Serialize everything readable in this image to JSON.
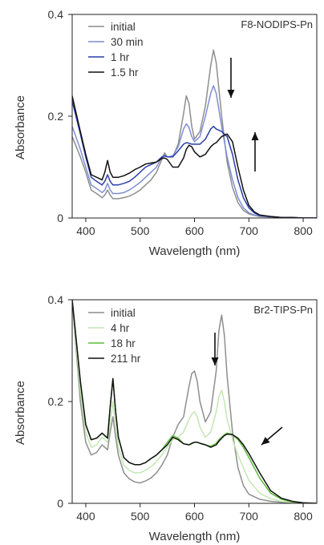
{
  "chart_data": [
    {
      "type": "line",
      "title": "F8-NODIPS-Pn",
      "xlabel": "Wavelength (nm)",
      "ylabel": "Absorbance",
      "xlim": [
        375,
        825
      ],
      "ylim": [
        0,
        0.4
      ],
      "xticks": [
        "400",
        "500",
        "600",
        "700",
        "800"
      ],
      "yticks": [
        "0",
        "0.2",
        "0.4"
      ],
      "grid": false,
      "legend": "top-left",
      "annotations": [
        "down arrow at 620 nm",
        "up arrow at 695 nm"
      ],
      "series": [
        {
          "name": "initial",
          "color": "#8e8e8e",
          "x": [
            375,
            390,
            400,
            410,
            420,
            430,
            435,
            440,
            445,
            450,
            460,
            470,
            480,
            490,
            500,
            510,
            520,
            530,
            540,
            545,
            550,
            560,
            570,
            580,
            585,
            590,
            595,
            600,
            610,
            620,
            630,
            635,
            640,
            650,
            660,
            670,
            680,
            690,
            700,
            710,
            720,
            740,
            760,
            780,
            800,
            825
          ],
          "y": [
            0.16,
            0.12,
            0.09,
            0.055,
            0.048,
            0.04,
            0.045,
            0.055,
            0.045,
            0.038,
            0.038,
            0.04,
            0.043,
            0.048,
            0.055,
            0.065,
            0.075,
            0.09,
            0.115,
            0.128,
            0.12,
            0.12,
            0.145,
            0.205,
            0.24,
            0.225,
            0.18,
            0.155,
            0.17,
            0.22,
            0.3,
            0.33,
            0.305,
            0.2,
            0.11,
            0.06,
            0.03,
            0.015,
            0.008,
            0.005,
            0.003,
            0.002,
            0.001,
            0.001,
            0.0,
            0.0
          ]
        },
        {
          "name": "30 min",
          "color": "#7f8ed6",
          "x": [
            375,
            390,
            400,
            410,
            420,
            430,
            435,
            440,
            445,
            450,
            460,
            470,
            480,
            490,
            500,
            510,
            520,
            530,
            540,
            545,
            550,
            560,
            570,
            580,
            585,
            590,
            595,
            600,
            610,
            620,
            630,
            635,
            640,
            650,
            660,
            670,
            680,
            690,
            700,
            710,
            720,
            740,
            760,
            780,
            800,
            825
          ],
          "y": [
            0.18,
            0.135,
            0.1,
            0.065,
            0.058,
            0.05,
            0.055,
            0.068,
            0.055,
            0.048,
            0.048,
            0.05,
            0.055,
            0.062,
            0.07,
            0.08,
            0.09,
            0.1,
            0.12,
            0.124,
            0.12,
            0.122,
            0.14,
            0.175,
            0.185,
            0.178,
            0.16,
            0.15,
            0.16,
            0.2,
            0.245,
            0.26,
            0.245,
            0.18,
            0.12,
            0.075,
            0.04,
            0.02,
            0.01,
            0.006,
            0.004,
            0.002,
            0.001,
            0.001,
            0.0,
            0.0
          ]
        },
        {
          "name": "1 hr",
          "color": "#2a3ea8",
          "x": [
            375,
            390,
            400,
            410,
            420,
            430,
            435,
            440,
            445,
            450,
            460,
            470,
            480,
            490,
            500,
            510,
            520,
            530,
            540,
            545,
            550,
            560,
            570,
            580,
            585,
            590,
            595,
            600,
            610,
            620,
            630,
            635,
            640,
            650,
            660,
            670,
            680,
            690,
            700,
            710,
            720,
            740,
            760,
            780,
            800,
            825
          ],
          "y": [
            0.23,
            0.165,
            0.12,
            0.08,
            0.072,
            0.065,
            0.072,
            0.085,
            0.072,
            0.065,
            0.065,
            0.068,
            0.072,
            0.08,
            0.09,
            0.1,
            0.105,
            0.11,
            0.12,
            0.122,
            0.12,
            0.12,
            0.132,
            0.145,
            0.148,
            0.147,
            0.145,
            0.145,
            0.145,
            0.155,
            0.175,
            0.18,
            0.175,
            0.17,
            0.16,
            0.125,
            0.075,
            0.04,
            0.02,
            0.01,
            0.005,
            0.003,
            0.001,
            0.001,
            0.0,
            0.0
          ]
        },
        {
          "name": "1.5 hr",
          "color": "#111111",
          "x": [
            375,
            390,
            400,
            410,
            420,
            430,
            435,
            440,
            445,
            450,
            460,
            470,
            480,
            490,
            500,
            510,
            520,
            530,
            540,
            545,
            550,
            560,
            570,
            580,
            585,
            590,
            595,
            600,
            610,
            620,
            630,
            635,
            640,
            650,
            660,
            670,
            680,
            690,
            700,
            710,
            720,
            740,
            760,
            780,
            800,
            825
          ],
          "y": [
            0.24,
            0.17,
            0.125,
            0.085,
            0.08,
            0.075,
            0.09,
            0.113,
            0.09,
            0.08,
            0.08,
            0.083,
            0.088,
            0.095,
            0.1,
            0.106,
            0.108,
            0.11,
            0.117,
            0.118,
            0.115,
            0.1,
            0.1,
            0.118,
            0.135,
            0.143,
            0.14,
            0.13,
            0.12,
            0.125,
            0.14,
            0.145,
            0.148,
            0.16,
            0.165,
            0.15,
            0.1,
            0.055,
            0.025,
            0.012,
            0.006,
            0.003,
            0.001,
            0.001,
            0.0,
            0.0
          ]
        }
      ]
    },
    {
      "type": "line",
      "title": "Br2-TIPS-Pn",
      "xlabel": "Wavelength (nm)",
      "ylabel": "Absorbance",
      "xlim": [
        375,
        825
      ],
      "ylim": [
        0,
        0.4
      ],
      "xticks": [
        "400",
        "500",
        "600",
        "700",
        "800"
      ],
      "yticks": [
        "0",
        "0.2",
        "0.4"
      ],
      "grid": false,
      "legend": "top-left",
      "annotations": [
        "down arrow at 630 nm",
        "diagonal arrow pointing to 710 nm shoulder"
      ],
      "series": [
        {
          "name": "initial",
          "color": "#8e8e8e",
          "x": [
            375,
            390,
            400,
            410,
            420,
            430,
            440,
            445,
            450,
            455,
            460,
            470,
            480,
            490,
            500,
            510,
            520,
            530,
            540,
            550,
            560,
            570,
            580,
            590,
            595,
            600,
            605,
            610,
            620,
            630,
            640,
            645,
            650,
            655,
            660,
            670,
            680,
            690,
            700,
            720,
            740,
            760,
            780,
            800,
            825
          ],
          "y": [
            0.4,
            0.2,
            0.12,
            0.095,
            0.1,
            0.115,
            0.105,
            0.14,
            0.17,
            0.13,
            0.095,
            0.06,
            0.048,
            0.042,
            0.04,
            0.044,
            0.05,
            0.06,
            0.075,
            0.095,
            0.13,
            0.155,
            0.17,
            0.23,
            0.255,
            0.26,
            0.24,
            0.2,
            0.16,
            0.18,
            0.26,
            0.34,
            0.37,
            0.33,
            0.25,
            0.14,
            0.07,
            0.035,
            0.018,
            0.008,
            0.004,
            0.002,
            0.001,
            0.0,
            0.0
          ]
        },
        {
          "name": "4 hr",
          "color": "#c4e6b2",
          "x": [
            375,
            390,
            400,
            410,
            420,
            430,
            440,
            445,
            450,
            455,
            460,
            470,
            480,
            490,
            500,
            510,
            520,
            530,
            540,
            550,
            560,
            570,
            580,
            590,
            595,
            600,
            605,
            610,
            620,
            630,
            640,
            645,
            650,
            655,
            660,
            670,
            680,
            690,
            700,
            720,
            740,
            760,
            780,
            800,
            825
          ],
          "y": [
            0.4,
            0.22,
            0.14,
            0.11,
            0.115,
            0.13,
            0.12,
            0.16,
            0.2,
            0.15,
            0.11,
            0.075,
            0.065,
            0.06,
            0.06,
            0.065,
            0.072,
            0.082,
            0.095,
            0.11,
            0.125,
            0.13,
            0.14,
            0.165,
            0.175,
            0.18,
            0.17,
            0.15,
            0.13,
            0.14,
            0.18,
            0.21,
            0.222,
            0.2,
            0.165,
            0.125,
            0.095,
            0.07,
            0.045,
            0.02,
            0.009,
            0.004,
            0.002,
            0.001,
            0.0
          ]
        },
        {
          "name": "18 hr",
          "color": "#5cba3a",
          "x": [
            375,
            390,
            400,
            410,
            420,
            430,
            440,
            445,
            450,
            455,
            460,
            470,
            480,
            490,
            500,
            510,
            520,
            530,
            540,
            550,
            560,
            570,
            580,
            590,
            595,
            600,
            605,
            610,
            620,
            630,
            640,
            645,
            650,
            655,
            660,
            670,
            680,
            690,
            700,
            720,
            740,
            760,
            780,
            800,
            825
          ],
          "y": [
            0.4,
            0.24,
            0.155,
            0.125,
            0.128,
            0.138,
            0.128,
            0.19,
            0.245,
            0.18,
            0.13,
            0.09,
            0.08,
            0.076,
            0.076,
            0.08,
            0.088,
            0.095,
            0.105,
            0.12,
            0.133,
            0.128,
            0.117,
            0.115,
            0.117,
            0.12,
            0.12,
            0.118,
            0.115,
            0.112,
            0.118,
            0.125,
            0.13,
            0.135,
            0.138,
            0.135,
            0.125,
            0.11,
            0.09,
            0.05,
            0.02,
            0.008,
            0.003,
            0.001,
            0.0
          ]
        },
        {
          "name": "211 hr",
          "color": "#111111",
          "x": [
            375,
            390,
            400,
            410,
            420,
            430,
            440,
            445,
            450,
            455,
            460,
            470,
            480,
            490,
            500,
            510,
            520,
            530,
            540,
            550,
            560,
            570,
            580,
            590,
            595,
            600,
            605,
            610,
            620,
            630,
            640,
            645,
            650,
            655,
            660,
            670,
            680,
            690,
            700,
            720,
            740,
            760,
            780,
            800,
            825
          ],
          "y": [
            0.4,
            0.24,
            0.155,
            0.125,
            0.128,
            0.138,
            0.128,
            0.19,
            0.245,
            0.18,
            0.13,
            0.09,
            0.08,
            0.076,
            0.076,
            0.08,
            0.088,
            0.095,
            0.105,
            0.115,
            0.13,
            0.125,
            0.117,
            0.115,
            0.118,
            0.12,
            0.12,
            0.118,
            0.115,
            0.11,
            0.115,
            0.122,
            0.128,
            0.133,
            0.136,
            0.135,
            0.128,
            0.115,
            0.098,
            0.06,
            0.025,
            0.01,
            0.004,
            0.001,
            0.0
          ]
        }
      ]
    }
  ]
}
